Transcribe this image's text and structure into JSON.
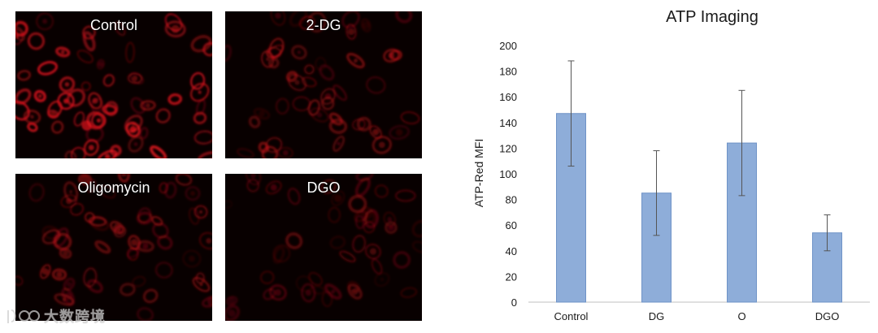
{
  "panels": [
    {
      "label": "Control"
    },
    {
      "label": "2-DG"
    },
    {
      "label": "Oligomycin"
    },
    {
      "label": "DGO"
    }
  ],
  "watermark": {
    "text": "大数跨境"
  },
  "colors": {
    "bar": "#8eadd9",
    "bar_edge": "#6f93c7",
    "cell": "#e8141e",
    "axis": "#bfbfbf",
    "text": "#1a1a1a"
  },
  "chart_data": {
    "type": "bar",
    "title": "ATP Imaging",
    "xlabel": "",
    "ylabel": "ATP-Red MFI",
    "categories": [
      "Control",
      "DG",
      "O",
      "DGO"
    ],
    "values": [
      147,
      85,
      124,
      54
    ],
    "error_upper": [
      188,
      118,
      165,
      68
    ],
    "error_lower": [
      106,
      52,
      83,
      40
    ],
    "ylim": [
      0,
      200
    ],
    "yticks": [
      0,
      20,
      40,
      60,
      80,
      100,
      120,
      140,
      160,
      180,
      200
    ],
    "grid": false,
    "legend": "none"
  }
}
